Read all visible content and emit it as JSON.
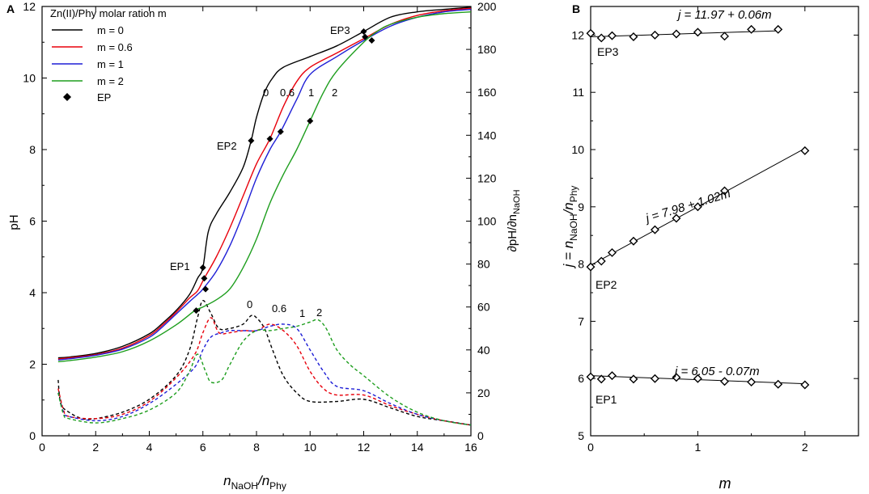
{
  "chart_data": [
    {
      "panel_label": "A",
      "type": "line",
      "xlabel": {
        "main": "n",
        "sub1": "NaOH",
        "slash": "/n",
        "sub2": "Phy"
      },
      "ylabel_left": "pH",
      "ylabel_right": {
        "pre": "∂pH/∂n",
        "sub": "NaOH"
      },
      "xlim": [
        0,
        16
      ],
      "ylim_left": [
        0,
        12
      ],
      "ylim_right": [
        0,
        200
      ],
      "xticks": [
        "0",
        "2",
        "4",
        "6",
        "8",
        "10",
        "12",
        "14",
        "16"
      ],
      "yticks_left": [
        "0",
        "2",
        "4",
        "6",
        "8",
        "10",
        "12"
      ],
      "yticks_right": [
        "0",
        "20",
        "40",
        "60",
        "80",
        "100",
        "120",
        "140",
        "160",
        "180",
        "200"
      ],
      "legend": {
        "title": "Zn(II)/Phy molar ration m",
        "entries": [
          "m = 0",
          "m = 0.6",
          "m = 1",
          "m = 2",
          "EP"
        ]
      },
      "series": [
        {
          "name": "m = 0",
          "color": "#000000",
          "ph": [
            [
              0.6,
              2.18
            ],
            [
              1,
              2.2
            ],
            [
              2,
              2.3
            ],
            [
              3,
              2.5
            ],
            [
              4,
              2.85
            ],
            [
              4.5,
              3.15
            ],
            [
              5,
              3.5
            ],
            [
              5.5,
              3.95
            ],
            [
              5.8,
              4.4
            ],
            [
              6,
              4.7
            ],
            [
              6.2,
              5.7
            ],
            [
              6.5,
              6.2
            ],
            [
              7,
              6.8
            ],
            [
              7.5,
              7.5
            ],
            [
              7.8,
              8.25
            ],
            [
              8,
              8.9
            ],
            [
              8.3,
              9.6
            ],
            [
              8.6,
              10.0
            ],
            [
              9,
              10.3
            ],
            [
              10,
              10.6
            ],
            [
              11,
              10.9
            ],
            [
              12,
              11.3
            ],
            [
              13,
              11.7
            ],
            [
              14,
              11.85
            ],
            [
              15,
              11.92
            ],
            [
              16,
              11.98
            ]
          ],
          "derivative": [
            [
              0.6,
              26
            ],
            [
              0.7,
              15
            ],
            [
              1,
              11
            ],
            [
              1.5,
              8
            ],
            [
              2,
              8
            ],
            [
              3,
              11
            ],
            [
              4,
              17
            ],
            [
              5,
              28
            ],
            [
              5.5,
              40
            ],
            [
              5.8,
              55
            ],
            [
              6,
              63
            ],
            [
              6.3,
              57
            ],
            [
              6.6,
              50
            ],
            [
              7,
              50
            ],
            [
              7.5,
              52
            ],
            [
              7.8,
              56
            ],
            [
              8,
              55
            ],
            [
              8.3,
              50
            ],
            [
              8.6,
              40
            ],
            [
              9,
              28
            ],
            [
              9.5,
              20
            ],
            [
              10,
              16
            ],
            [
              11,
              16
            ],
            [
              12,
              17
            ],
            [
              13,
              13
            ],
            [
              14,
              9
            ],
            [
              15,
              7
            ],
            [
              16,
              5
            ]
          ]
        },
        {
          "name": "m = 0.6",
          "color": "#e8000b",
          "ph": [
            [
              0.6,
              2.15
            ],
            [
              1,
              2.18
            ],
            [
              2,
              2.27
            ],
            [
              3,
              2.45
            ],
            [
              4,
              2.8
            ],
            [
              4.5,
              3.1
            ],
            [
              5,
              3.45
            ],
            [
              5.5,
              3.85
            ],
            [
              5.8,
              4.05
            ],
            [
              6.05,
              4.4
            ],
            [
              6.5,
              5.0
            ],
            [
              7,
              5.8
            ],
            [
              7.5,
              6.7
            ],
            [
              8,
              7.6
            ],
            [
              8.5,
              8.3
            ],
            [
              9,
              9.2
            ],
            [
              9.5,
              9.9
            ],
            [
              10,
              10.3
            ],
            [
              11,
              10.7
            ],
            [
              12,
              11.1
            ],
            [
              13,
              11.5
            ],
            [
              14,
              11.75
            ],
            [
              15,
              11.88
            ],
            [
              16,
              11.95
            ]
          ],
          "derivative": [
            [
              0.6,
              22
            ],
            [
              0.8,
              12
            ],
            [
              1,
              9
            ],
            [
              2,
              8
            ],
            [
              3,
              10
            ],
            [
              4,
              16
            ],
            [
              5,
              27
            ],
            [
              5.7,
              38
            ],
            [
              6,
              48
            ],
            [
              6.3,
              55
            ],
            [
              6.6,
              48
            ],
            [
              7,
              48
            ],
            [
              7.5,
              49
            ],
            [
              8,
              49
            ],
            [
              8.5,
              52
            ],
            [
              9,
              49
            ],
            [
              9.5,
              42
            ],
            [
              10,
              30
            ],
            [
              10.5,
              22
            ],
            [
              11,
              19
            ],
            [
              12,
              19
            ],
            [
              13,
              14
            ],
            [
              14,
              10
            ],
            [
              15,
              7
            ],
            [
              16,
              5
            ]
          ]
        },
        {
          "name": "m = 1",
          "color": "#1f1fd6",
          "ph": [
            [
              0.6,
              2.12
            ],
            [
              1,
              2.15
            ],
            [
              2,
              2.25
            ],
            [
              3,
              2.42
            ],
            [
              4,
              2.75
            ],
            [
              4.5,
              3.05
            ],
            [
              5,
              3.4
            ],
            [
              5.5,
              3.75
            ],
            [
              5.8,
              3.95
            ],
            [
              6,
              4.1
            ],
            [
              6.5,
              4.6
            ],
            [
              7,
              5.3
            ],
            [
              7.5,
              6.2
            ],
            [
              8,
              7.2
            ],
            [
              8.5,
              8.0
            ],
            [
              8.9,
              8.5
            ],
            [
              9.5,
              9.4
            ],
            [
              10,
              10.1
            ],
            [
              11,
              10.6
            ],
            [
              12,
              11.05
            ],
            [
              13,
              11.45
            ],
            [
              14,
              11.7
            ],
            [
              15,
              11.85
            ],
            [
              16,
              11.92
            ]
          ],
          "derivative": [
            [
              0.6,
              20
            ],
            [
              0.8,
              11
            ],
            [
              1,
              9
            ],
            [
              2,
              7
            ],
            [
              3,
              9
            ],
            [
              4,
              15
            ],
            [
              5,
              24
            ],
            [
              5.7,
              32
            ],
            [
              6,
              40
            ],
            [
              6.3,
              46
            ],
            [
              6.7,
              48
            ],
            [
              7,
              49
            ],
            [
              7.5,
              49
            ],
            [
              8,
              49
            ],
            [
              8.5,
              51
            ],
            [
              9,
              52
            ],
            [
              9.5,
              50
            ],
            [
              10,
              40
            ],
            [
              10.5,
              30
            ],
            [
              11,
              23
            ],
            [
              12,
              21
            ],
            [
              13,
              15
            ],
            [
              14,
              10
            ],
            [
              15,
              7
            ],
            [
              16,
              5
            ]
          ]
        },
        {
          "name": "m = 2",
          "color": "#1e9e1e",
          "ph": [
            [
              0.6,
              2.07
            ],
            [
              1,
              2.1
            ],
            [
              2,
              2.2
            ],
            [
              3,
              2.35
            ],
            [
              4,
              2.65
            ],
            [
              5,
              3.1
            ],
            [
              5.7,
              3.5
            ],
            [
              6,
              3.6
            ],
            [
              6.5,
              3.8
            ],
            [
              7,
              4.1
            ],
            [
              7.5,
              4.7
            ],
            [
              8,
              5.5
            ],
            [
              8.5,
              6.5
            ],
            [
              9,
              7.3
            ],
            [
              9.5,
              8.0
            ],
            [
              10,
              8.8
            ],
            [
              10.5,
              9.6
            ],
            [
              11,
              10.2
            ],
            [
              12,
              11.0
            ],
            [
              12.5,
              11.3
            ],
            [
              13,
              11.5
            ],
            [
              14,
              11.7
            ],
            [
              15,
              11.8
            ],
            [
              16,
              11.85
            ]
          ],
          "derivative": [
            [
              0.6,
              20
            ],
            [
              0.8,
              10
            ],
            [
              1,
              8
            ],
            [
              2,
              6
            ],
            [
              3,
              8
            ],
            [
              4,
              12
            ],
            [
              5,
              20
            ],
            [
              5.5,
              30
            ],
            [
              5.8,
              38
            ],
            [
              6.1,
              30
            ],
            [
              6.3,
              25
            ],
            [
              6.7,
              26
            ],
            [
              7,
              33
            ],
            [
              7.5,
              44
            ],
            [
              8,
              49
            ],
            [
              8.5,
              49
            ],
            [
              9,
              50
            ],
            [
              9.5,
              51
            ],
            [
              10,
              53
            ],
            [
              10.3,
              54
            ],
            [
              10.6,
              50
            ],
            [
              11,
              40
            ],
            [
              11.5,
              33
            ],
            [
              12,
              28
            ],
            [
              13,
              18
            ],
            [
              14,
              11
            ],
            [
              15,
              7
            ],
            [
              16,
              5
            ]
          ]
        }
      ],
      "endpoints": [
        [
          5.75,
          3.5
        ],
        [
          6.0,
          4.7
        ],
        [
          6.05,
          4.4
        ],
        [
          6.1,
          4.1
        ],
        [
          7.8,
          8.25
        ],
        [
          8.5,
          8.3
        ],
        [
          8.9,
          8.5
        ],
        [
          10.0,
          8.8
        ],
        [
          12.0,
          11.3
        ],
        [
          12.05,
          11.15
        ],
        [
          12.3,
          11.05
        ]
      ],
      "annotations": {
        "ep1": "EP1",
        "ep2": "EP2",
        "ep3": "EP3",
        "ph_curve_labels": [
          "0",
          "0.6",
          "1",
          "2"
        ],
        "deriv_curve_labels": [
          "0",
          "0.6",
          "1",
          "2"
        ]
      }
    },
    {
      "panel_label": "B",
      "type": "scatter",
      "xlabel": "m",
      "ylabel": {
        "pre": "j = n",
        "sub1": "NaOH",
        "slash": "/n",
        "sub2": "Phy"
      },
      "xlim": [
        0,
        2.5
      ],
      "ylim": [
        5,
        12.5
      ],
      "xticks": [
        "0",
        "1",
        "2"
      ],
      "yticks": [
        "5",
        "6",
        "7",
        "8",
        "9",
        "10",
        "11",
        "12"
      ],
      "series": [
        {
          "name": "EP1",
          "fit": "j = 6.05 - 0.07m",
          "intercept": 6.05,
          "slope": -0.07,
          "m": [
            0,
            0.1,
            0.2,
            0.4,
            0.6,
            0.8,
            1.0,
            1.25,
            1.5,
            1.75,
            2.0
          ],
          "j": [
            6.03,
            5.99,
            6.05,
            5.99,
            6.0,
            6.02,
            6.0,
            5.95,
            5.94,
            5.9,
            5.89
          ]
        },
        {
          "name": "EP2",
          "fit": "j = 7.98 + 1.02m",
          "intercept": 7.98,
          "slope": 1.02,
          "m": [
            0,
            0.1,
            0.2,
            0.4,
            0.6,
            0.8,
            1.0,
            1.25,
            2.0
          ],
          "j": [
            7.95,
            8.05,
            8.2,
            8.4,
            8.6,
            8.8,
            9.0,
            9.28,
            9.98
          ]
        },
        {
          "name": "EP3",
          "fit": "j = 11.97 + 0.06m",
          "intercept": 11.97,
          "slope": 0.06,
          "m": [
            0,
            0.1,
            0.2,
            0.4,
            0.6,
            0.8,
            1.0,
            1.25,
            1.5,
            1.75
          ],
          "j": [
            12.03,
            11.95,
            11.99,
            11.97,
            12.0,
            12.02,
            12.05,
            11.98,
            12.1,
            12.1
          ]
        }
      ]
    }
  ]
}
